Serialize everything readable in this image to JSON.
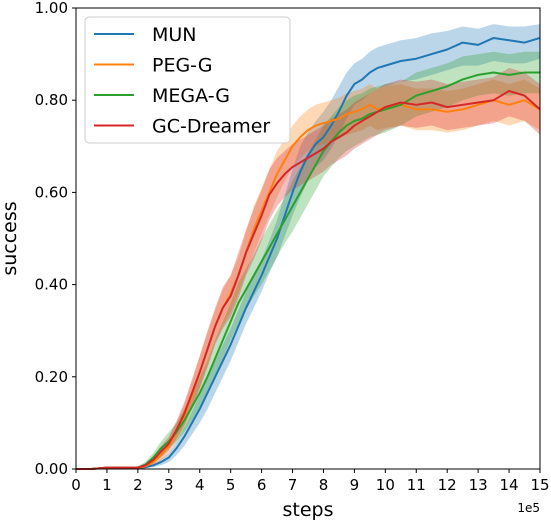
{
  "chart_data": {
    "type": "line",
    "xlabel": "steps",
    "ylabel": "success",
    "x_offset_label": "1e5",
    "xlim": [
      0,
      15
    ],
    "ylim": [
      0,
      1
    ],
    "x_ticks": [
      "0",
      "1",
      "2",
      "3",
      "4",
      "5",
      "6",
      "7",
      "8",
      "9",
      "10",
      "11",
      "12",
      "13",
      "14",
      "15"
    ],
    "y_ticks": [
      "0.00",
      "0.20",
      "0.40",
      "0.60",
      "0.80",
      "1.00"
    ],
    "grid": false,
    "legend_position": "top-left",
    "x": [
      0,
      0.5,
      1,
      1.5,
      2,
      2.25,
      2.5,
      2.75,
      3,
      3.25,
      3.5,
      3.75,
      4,
      4.25,
      4.5,
      4.75,
      5,
      5.25,
      5.5,
      5.75,
      6,
      6.25,
      6.5,
      6.75,
      7,
      7.25,
      7.5,
      7.75,
      8,
      8.25,
      8.5,
      8.75,
      9,
      9.25,
      9.5,
      9.75,
      10,
      10.5,
      11,
      11.5,
      12,
      12.5,
      13,
      13.5,
      14,
      14.5,
      15
    ],
    "series": [
      {
        "name": "MUN",
        "color": "#1f77b4",
        "values": [
          0,
          0,
          0.003,
          0.003,
          0.002,
          0.004,
          0.008,
          0.015,
          0.025,
          0.045,
          0.07,
          0.1,
          0.13,
          0.165,
          0.2,
          0.235,
          0.27,
          0.31,
          0.35,
          0.385,
          0.42,
          0.46,
          0.5,
          0.55,
          0.6,
          0.645,
          0.68,
          0.705,
          0.72,
          0.745,
          0.775,
          0.81,
          0.835,
          0.845,
          0.86,
          0.87,
          0.875,
          0.885,
          0.89,
          0.9,
          0.91,
          0.925,
          0.92,
          0.935,
          0.93,
          0.925,
          0.935
        ],
        "lower": [
          0,
          0,
          0.001,
          0.001,
          0.001,
          0.002,
          0.004,
          0.008,
          0.015,
          0.03,
          0.05,
          0.075,
          0.1,
          0.13,
          0.165,
          0.2,
          0.235,
          0.275,
          0.315,
          0.35,
          0.385,
          0.425,
          0.46,
          0.505,
          0.55,
          0.59,
          0.625,
          0.655,
          0.67,
          0.695,
          0.725,
          0.76,
          0.79,
          0.8,
          0.815,
          0.825,
          0.83,
          0.84,
          0.845,
          0.855,
          0.865,
          0.875,
          0.875,
          0.885,
          0.88,
          0.88,
          0.89
        ],
        "upper": [
          0.002,
          0.002,
          0.005,
          0.005,
          0.004,
          0.007,
          0.012,
          0.022,
          0.035,
          0.06,
          0.09,
          0.125,
          0.16,
          0.2,
          0.235,
          0.27,
          0.305,
          0.345,
          0.385,
          0.42,
          0.455,
          0.495,
          0.54,
          0.595,
          0.65,
          0.7,
          0.73,
          0.755,
          0.775,
          0.8,
          0.83,
          0.86,
          0.88,
          0.89,
          0.905,
          0.915,
          0.92,
          0.93,
          0.935,
          0.945,
          0.95,
          0.96,
          0.955,
          0.965,
          0.96,
          0.96,
          0.965
        ]
      },
      {
        "name": "PEG-G",
        "color": "#ff7f0e",
        "values": [
          0,
          0,
          0.003,
          0.002,
          0.002,
          0.006,
          0.015,
          0.03,
          0.05,
          0.08,
          0.115,
          0.16,
          0.21,
          0.26,
          0.31,
          0.35,
          0.38,
          0.42,
          0.47,
          0.52,
          0.56,
          0.6,
          0.64,
          0.67,
          0.7,
          0.72,
          0.735,
          0.745,
          0.75,
          0.755,
          0.76,
          0.77,
          0.775,
          0.78,
          0.79,
          0.78,
          0.785,
          0.79,
          0.78,
          0.78,
          0.775,
          0.78,
          0.79,
          0.8,
          0.79,
          0.8,
          0.78
        ],
        "lower": [
          0,
          0,
          0.001,
          0.001,
          0.001,
          0.003,
          0.008,
          0.018,
          0.035,
          0.06,
          0.09,
          0.13,
          0.175,
          0.225,
          0.275,
          0.31,
          0.34,
          0.38,
          0.425,
          0.47,
          0.51,
          0.55,
          0.59,
          0.625,
          0.655,
          0.675,
          0.69,
          0.7,
          0.705,
          0.71,
          0.715,
          0.725,
          0.73,
          0.735,
          0.745,
          0.735,
          0.74,
          0.745,
          0.735,
          0.735,
          0.73,
          0.735,
          0.745,
          0.755,
          0.745,
          0.755,
          0.735
        ],
        "upper": [
          0.002,
          0.002,
          0.005,
          0.004,
          0.004,
          0.01,
          0.022,
          0.042,
          0.065,
          0.1,
          0.14,
          0.19,
          0.245,
          0.295,
          0.345,
          0.39,
          0.42,
          0.46,
          0.515,
          0.57,
          0.61,
          0.65,
          0.69,
          0.715,
          0.745,
          0.765,
          0.78,
          0.79,
          0.795,
          0.8,
          0.805,
          0.815,
          0.82,
          0.825,
          0.835,
          0.825,
          0.83,
          0.835,
          0.825,
          0.825,
          0.82,
          0.825,
          0.835,
          0.845,
          0.835,
          0.845,
          0.825
        ]
      },
      {
        "name": "MEGA-G",
        "color": "#2ca02c",
        "values": [
          0,
          0,
          0.003,
          0.002,
          0.003,
          0.01,
          0.025,
          0.045,
          0.06,
          0.08,
          0.105,
          0.135,
          0.165,
          0.2,
          0.24,
          0.28,
          0.32,
          0.36,
          0.39,
          0.42,
          0.45,
          0.48,
          0.51,
          0.54,
          0.57,
          0.6,
          0.63,
          0.66,
          0.69,
          0.71,
          0.73,
          0.745,
          0.755,
          0.76,
          0.77,
          0.775,
          0.78,
          0.79,
          0.81,
          0.82,
          0.83,
          0.845,
          0.855,
          0.86,
          0.855,
          0.86,
          0.86
        ],
        "lower": [
          0,
          0,
          0.001,
          0.001,
          0.001,
          0.005,
          0.015,
          0.03,
          0.045,
          0.06,
          0.08,
          0.105,
          0.13,
          0.165,
          0.2,
          0.24,
          0.28,
          0.315,
          0.345,
          0.375,
          0.4,
          0.43,
          0.46,
          0.49,
          0.515,
          0.545,
          0.575,
          0.605,
          0.635,
          0.655,
          0.675,
          0.69,
          0.7,
          0.71,
          0.72,
          0.725,
          0.73,
          0.745,
          0.765,
          0.775,
          0.785,
          0.8,
          0.81,
          0.815,
          0.81,
          0.815,
          0.815
        ],
        "upper": [
          0.002,
          0.002,
          0.005,
          0.004,
          0.006,
          0.016,
          0.035,
          0.06,
          0.08,
          0.1,
          0.13,
          0.165,
          0.2,
          0.235,
          0.28,
          0.32,
          0.36,
          0.405,
          0.435,
          0.465,
          0.5,
          0.53,
          0.56,
          0.59,
          0.625,
          0.655,
          0.685,
          0.715,
          0.745,
          0.765,
          0.785,
          0.8,
          0.81,
          0.815,
          0.825,
          0.83,
          0.835,
          0.84,
          0.86,
          0.87,
          0.88,
          0.895,
          0.9,
          0.905,
          0.9,
          0.905,
          0.905
        ]
      },
      {
        "name": "GC-Dreamer",
        "color": "#d62728",
        "values": [
          0,
          0,
          0.003,
          0.003,
          0.003,
          0.008,
          0.02,
          0.038,
          0.055,
          0.085,
          0.12,
          0.165,
          0.21,
          0.26,
          0.31,
          0.35,
          0.375,
          0.42,
          0.47,
          0.51,
          0.55,
          0.595,
          0.62,
          0.64,
          0.655,
          0.665,
          0.675,
          0.685,
          0.695,
          0.71,
          0.72,
          0.73,
          0.745,
          0.755,
          0.765,
          0.775,
          0.785,
          0.795,
          0.79,
          0.795,
          0.785,
          0.79,
          0.795,
          0.8,
          0.82,
          0.81,
          0.78
        ],
        "lower": [
          0,
          0,
          0.001,
          0.001,
          0.001,
          0.004,
          0.012,
          0.025,
          0.04,
          0.065,
          0.095,
          0.135,
          0.175,
          0.22,
          0.27,
          0.305,
          0.33,
          0.37,
          0.42,
          0.455,
          0.495,
          0.54,
          0.57,
          0.59,
          0.605,
          0.615,
          0.625,
          0.635,
          0.645,
          0.66,
          0.67,
          0.68,
          0.695,
          0.705,
          0.715,
          0.725,
          0.735,
          0.745,
          0.74,
          0.745,
          0.735,
          0.74,
          0.745,
          0.75,
          0.765,
          0.755,
          0.725
        ],
        "upper": [
          0.002,
          0.002,
          0.005,
          0.005,
          0.005,
          0.012,
          0.028,
          0.05,
          0.07,
          0.105,
          0.145,
          0.195,
          0.245,
          0.3,
          0.35,
          0.395,
          0.42,
          0.47,
          0.52,
          0.565,
          0.605,
          0.65,
          0.675,
          0.69,
          0.705,
          0.715,
          0.725,
          0.735,
          0.745,
          0.76,
          0.77,
          0.78,
          0.795,
          0.805,
          0.815,
          0.825,
          0.835,
          0.845,
          0.84,
          0.845,
          0.835,
          0.84,
          0.845,
          0.85,
          0.87,
          0.86,
          0.835
        ]
      }
    ]
  }
}
